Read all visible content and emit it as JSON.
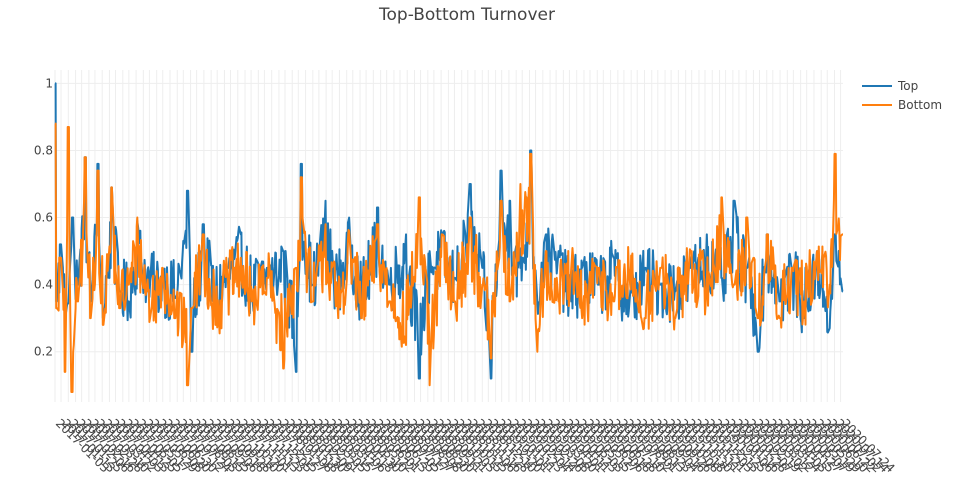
{
  "chart_data": {
    "type": "line",
    "title": "Top-Bottom Turnover",
    "xlabel": "",
    "ylabel": "",
    "ylim": [
      0.05,
      1.04
    ],
    "y_ticks": [
      0.2,
      0.4,
      0.6,
      0.8,
      1
    ],
    "y_tick_labels": [
      "0.2",
      "0.4",
      "0.6",
      "0.8",
      "1"
    ],
    "x_start": "2017-01-03",
    "x_end": "2020-07-28",
    "x_tick_every_n_business_days": 8,
    "grid": true,
    "legend_position": "top-right",
    "series": [
      {
        "name": "Top",
        "color": "#1f77b4",
        "anchors": [
          [
            "2017-01-03",
            1.0
          ],
          [
            "2017-01-05",
            0.35
          ],
          [
            "2017-01-12",
            0.52
          ],
          [
            "2017-01-20",
            0.3
          ],
          [
            "2017-02-01",
            0.6
          ],
          [
            "2017-02-10",
            0.4
          ],
          [
            "2017-02-22",
            0.78
          ],
          [
            "2017-03-03",
            0.35
          ],
          [
            "2017-03-15",
            0.76
          ],
          [
            "2017-03-24",
            0.3
          ],
          [
            "2017-04-07",
            0.69
          ],
          [
            "2017-04-20",
            0.38
          ],
          [
            "2017-05-05",
            0.35
          ],
          [
            "2017-05-20",
            0.59
          ],
          [
            "2017-06-10",
            0.4
          ],
          [
            "2017-06-30",
            0.42
          ],
          [
            "2017-07-20",
            0.36
          ],
          [
            "2017-08-10",
            0.68
          ],
          [
            "2017-08-17",
            0.2
          ],
          [
            "2017-09-05",
            0.58
          ],
          [
            "2017-09-25",
            0.35
          ],
          [
            "2017-10-15",
            0.45
          ],
          [
            "2017-11-05",
            0.55
          ],
          [
            "2017-11-25",
            0.38
          ],
          [
            "2017-12-20",
            0.45
          ],
          [
            "2018-01-15",
            0.5
          ],
          [
            "2018-02-05",
            0.14
          ],
          [
            "2018-02-14",
            0.76
          ],
          [
            "2018-03-05",
            0.4
          ],
          [
            "2018-03-25",
            0.65
          ],
          [
            "2018-04-15",
            0.4
          ],
          [
            "2018-05-05",
            0.6
          ],
          [
            "2018-05-25",
            0.35
          ],
          [
            "2018-06-20",
            0.63
          ],
          [
            "2018-07-10",
            0.4
          ],
          [
            "2018-08-05",
            0.55
          ],
          [
            "2018-08-28",
            0.12
          ],
          [
            "2018-09-15",
            0.5
          ],
          [
            "2018-10-05",
            0.55
          ],
          [
            "2018-10-25",
            0.42
          ],
          [
            "2018-11-20",
            0.7
          ],
          [
            "2018-12-10",
            0.45
          ],
          [
            "2018-12-24",
            0.12
          ],
          [
            "2019-01-10",
            0.74
          ],
          [
            "2019-01-25",
            0.65
          ],
          [
            "2019-02-10",
            0.45
          ],
          [
            "2019-02-28",
            0.8
          ],
          [
            "2019-03-10",
            0.35
          ],
          [
            "2019-03-25",
            0.55
          ],
          [
            "2019-04-15",
            0.5
          ],
          [
            "2019-05-05",
            0.35
          ],
          [
            "2019-05-25",
            0.45
          ],
          [
            "2019-06-20",
            0.4
          ],
          [
            "2019-07-15",
            0.48
          ],
          [
            "2019-08-10",
            0.32
          ],
          [
            "2019-09-05",
            0.45
          ],
          [
            "2019-10-01",
            0.4
          ],
          [
            "2019-10-25",
            0.38
          ],
          [
            "2019-11-20",
            0.45
          ],
          [
            "2019-12-15",
            0.55
          ],
          [
            "2020-01-10",
            0.42
          ],
          [
            "2020-01-30",
            0.65
          ],
          [
            "2020-02-20",
            0.45
          ],
          [
            "2020-03-10",
            0.2
          ],
          [
            "2020-03-25",
            0.55
          ],
          [
            "2020-04-15",
            0.35
          ],
          [
            "2020-05-05",
            0.45
          ],
          [
            "2020-05-25",
            0.3
          ],
          [
            "2020-06-15",
            0.5
          ],
          [
            "2020-07-05",
            0.27
          ],
          [
            "2020-07-15",
            0.55
          ],
          [
            "2020-07-28",
            0.38
          ]
        ]
      },
      {
        "name": "Bottom",
        "color": "#ff7f0e",
        "anchors": [
          [
            "2017-01-03",
            0.88
          ],
          [
            "2017-01-05",
            0.33
          ],
          [
            "2017-01-12",
            0.48
          ],
          [
            "2017-01-20",
            0.14
          ],
          [
            "2017-01-25",
            0.87
          ],
          [
            "2017-01-31",
            0.08
          ],
          [
            "2017-02-10",
            0.35
          ],
          [
            "2017-02-22",
            0.78
          ],
          [
            "2017-03-03",
            0.3
          ],
          [
            "2017-03-15",
            0.74
          ],
          [
            "2017-03-24",
            0.28
          ],
          [
            "2017-04-07",
            0.69
          ],
          [
            "2017-04-20",
            0.33
          ],
          [
            "2017-05-05",
            0.4
          ],
          [
            "2017-05-20",
            0.6
          ],
          [
            "2017-06-10",
            0.3
          ],
          [
            "2017-06-30",
            0.45
          ],
          [
            "2017-07-20",
            0.3
          ],
          [
            "2017-08-10",
            0.1
          ],
          [
            "2017-08-17",
            0.33
          ],
          [
            "2017-09-05",
            0.55
          ],
          [
            "2017-09-25",
            0.28
          ],
          [
            "2017-10-15",
            0.4
          ],
          [
            "2017-11-05",
            0.48
          ],
          [
            "2017-11-25",
            0.35
          ],
          [
            "2017-12-20",
            0.42
          ],
          [
            "2018-01-15",
            0.15
          ],
          [
            "2018-02-05",
            0.45
          ],
          [
            "2018-02-14",
            0.72
          ],
          [
            "2018-03-05",
            0.35
          ],
          [
            "2018-03-25",
            0.58
          ],
          [
            "2018-04-15",
            0.3
          ],
          [
            "2018-05-05",
            0.56
          ],
          [
            "2018-05-25",
            0.3
          ],
          [
            "2018-06-20",
            0.58
          ],
          [
            "2018-07-10",
            0.35
          ],
          [
            "2018-08-05",
            0.22
          ],
          [
            "2018-08-28",
            0.66
          ],
          [
            "2018-09-15",
            0.1
          ],
          [
            "2018-10-05",
            0.55
          ],
          [
            "2018-10-25",
            0.35
          ],
          [
            "2018-11-20",
            0.6
          ],
          [
            "2018-12-10",
            0.4
          ],
          [
            "2018-12-24",
            0.18
          ],
          [
            "2019-01-10",
            0.65
          ],
          [
            "2019-01-25",
            0.35
          ],
          [
            "2019-02-10",
            0.7
          ],
          [
            "2019-02-28",
            0.79
          ],
          [
            "2019-03-10",
            0.2
          ],
          [
            "2019-03-25",
            0.5
          ],
          [
            "2019-04-15",
            0.35
          ],
          [
            "2019-05-05",
            0.45
          ],
          [
            "2019-05-25",
            0.3
          ],
          [
            "2019-06-20",
            0.45
          ],
          [
            "2019-07-15",
            0.35
          ],
          [
            "2019-08-10",
            0.45
          ],
          [
            "2019-09-05",
            0.3
          ],
          [
            "2019-10-01",
            0.45
          ],
          [
            "2019-10-25",
            0.3
          ],
          [
            "2019-11-20",
            0.5
          ],
          [
            "2019-12-15",
            0.4
          ],
          [
            "2020-01-10",
            0.66
          ],
          [
            "2020-01-30",
            0.4
          ],
          [
            "2020-02-20",
            0.6
          ],
          [
            "2020-03-10",
            0.3
          ],
          [
            "2020-03-25",
            0.55
          ],
          [
            "2020-04-15",
            0.3
          ],
          [
            "2020-05-05",
            0.45
          ],
          [
            "2020-05-25",
            0.35
          ],
          [
            "2020-06-15",
            0.5
          ],
          [
            "2020-07-05",
            0.4
          ],
          [
            "2020-07-15",
            0.79
          ],
          [
            "2020-07-28",
            0.55
          ]
        ]
      }
    ]
  }
}
